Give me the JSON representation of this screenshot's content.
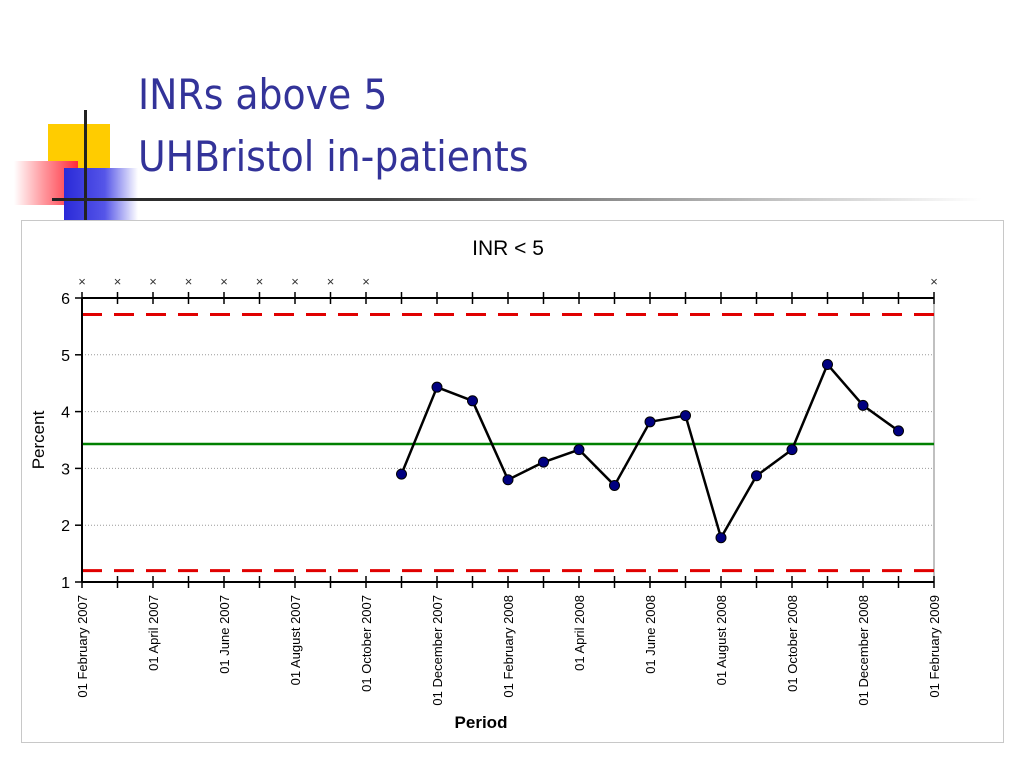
{
  "slide": {
    "title_line1": "INRs above 5",
    "title_line2": "UHBristol in-patients"
  },
  "chart_data": {
    "type": "line",
    "title": "INR < 5",
    "xlabel": "Period",
    "ylabel": "Percent",
    "ylim": [
      1,
      6
    ],
    "yticks": [
      1,
      2,
      3,
      4,
      5,
      6
    ],
    "grid": true,
    "grid_lines_y": [
      2,
      3,
      4,
      5
    ],
    "xlim": [
      "2007-02",
      "2009-02"
    ],
    "x_labels": [
      "01 February 2007",
      "01 April 2007",
      "01 June 2007",
      "01 August 2007",
      "01 October 2007",
      "01 December 2007",
      "01 February 2008",
      "01 April 2008",
      "01 June 2008",
      "01 August 2008",
      "01 October 2008",
      "01 December 2008",
      "01 February 2009"
    ],
    "series": [
      {
        "type": "line-markers",
        "color": "#000000",
        "marker_color": "#000080",
        "x": [
          "2007-11",
          "2007-12",
          "2008-01",
          "2008-02",
          "2008-03",
          "2008-04",
          "2008-05",
          "2008-06",
          "2008-07",
          "2008-08",
          "2008-09",
          "2008-10",
          "2008-11",
          "2008-12",
          "2009-01"
        ],
        "values": [
          2.9,
          4.43,
          4.19,
          2.8,
          3.11,
          3.33,
          2.7,
          3.82,
          3.93,
          1.78,
          2.87,
          3.33,
          4.83,
          4.11,
          3.66
        ]
      }
    ],
    "reference_lines": [
      {
        "kind": "mean",
        "value": 3.43,
        "color": "#008000",
        "style": "solid"
      },
      {
        "kind": "upper_control_limit",
        "value": 5.71,
        "color": "#e00000",
        "style": "dashed"
      },
      {
        "kind": "lower_control_limit",
        "value": 1.2,
        "color": "#e00000",
        "style": "dashed"
      }
    ],
    "top_markers": {
      "symbol": "×",
      "x": [
        "2007-02",
        "2007-03",
        "2007-04",
        "2007-05",
        "2007-06",
        "2007-07",
        "2007-08",
        "2007-09",
        "2007-10",
        "2009-02"
      ]
    }
  }
}
